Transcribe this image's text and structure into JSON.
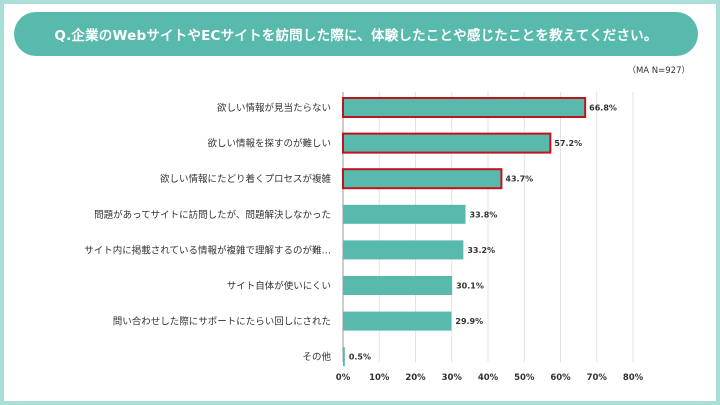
{
  "title": "Q.企業のWebサイトやECサイトを訪問した際に、体験したことや感じたことを教えてください。",
  "note": "（MA N=927）",
  "colors": {
    "frame": "#a9dfd6",
    "title_bg": "#58b9ad",
    "bar": "#58b9ad",
    "highlight_border": "#c0131b"
  },
  "chart_data": {
    "type": "bar",
    "orientation": "horizontal",
    "title": "Q.企業のWebサイトやECサイトを訪問した際に、体験したことや感じたことを教えてください。",
    "categories": [
      "欲しい情報が見当たらない",
      "欲しい情報を探すのが難しい",
      "欲しい情報にたどり着くプロセスが複雑",
      "問題があってサイトに訪問したが、問題解決しなかった",
      "サイト内に掲載されている情報が複雑で理解するのが難…",
      "サイト自体が使いにくい",
      "問い合わせした際にサポートにたらい回しにされた",
      "その他"
    ],
    "values": [
      66.8,
      57.2,
      43.7,
      33.8,
      33.2,
      30.1,
      29.9,
      0.5
    ],
    "value_labels": [
      "66.8%",
      "57.2%",
      "43.7%",
      "33.8%",
      "33.2%",
      "30.1%",
      "29.9%",
      "0.5%"
    ],
    "highlighted": [
      true,
      true,
      true,
      false,
      false,
      false,
      false,
      false
    ],
    "xlim": [
      0,
      80
    ],
    "xticks": [
      "0%",
      "10%",
      "20%",
      "30%",
      "40%",
      "50%",
      "60%",
      "70%",
      "80%"
    ],
    "grid": true,
    "legend": "none"
  }
}
